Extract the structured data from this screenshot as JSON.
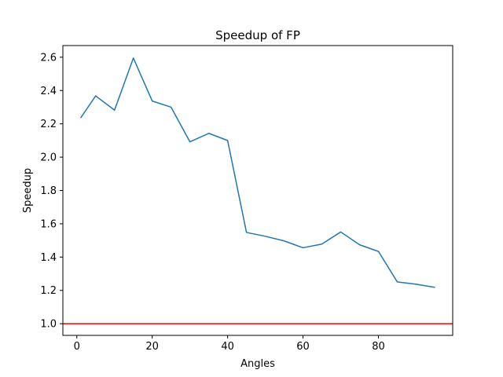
{
  "chart_data": {
    "type": "line",
    "title": "Speedup of FP",
    "xlabel": "Angles",
    "ylabel": "Speedup",
    "xlim": [
      -3.7,
      99.7
    ],
    "ylim": [
      0.93,
      2.67
    ],
    "xticks": [
      0,
      20,
      40,
      60,
      80
    ],
    "yticks": [
      1.0,
      1.2,
      1.4,
      1.6,
      1.8,
      2.0,
      2.2,
      2.4,
      2.6
    ],
    "grid": false,
    "legend": "none",
    "series": [
      {
        "color": "#1f77b4",
        "x": [
          1,
          5,
          10,
          15,
          20,
          25,
          30,
          35,
          40,
          45,
          50,
          55,
          60,
          65,
          70,
          75,
          80,
          85,
          90,
          95
        ],
        "y": [
          2.235,
          2.368,
          2.282,
          2.595,
          2.337,
          2.3,
          2.092,
          2.143,
          2.1,
          1.548,
          1.525,
          1.497,
          1.456,
          1.478,
          1.551,
          1.474,
          1.434,
          1.251,
          1.237,
          1.218
        ]
      }
    ],
    "reference_line": {
      "y": 1.0,
      "color": "#ff0000"
    }
  }
}
